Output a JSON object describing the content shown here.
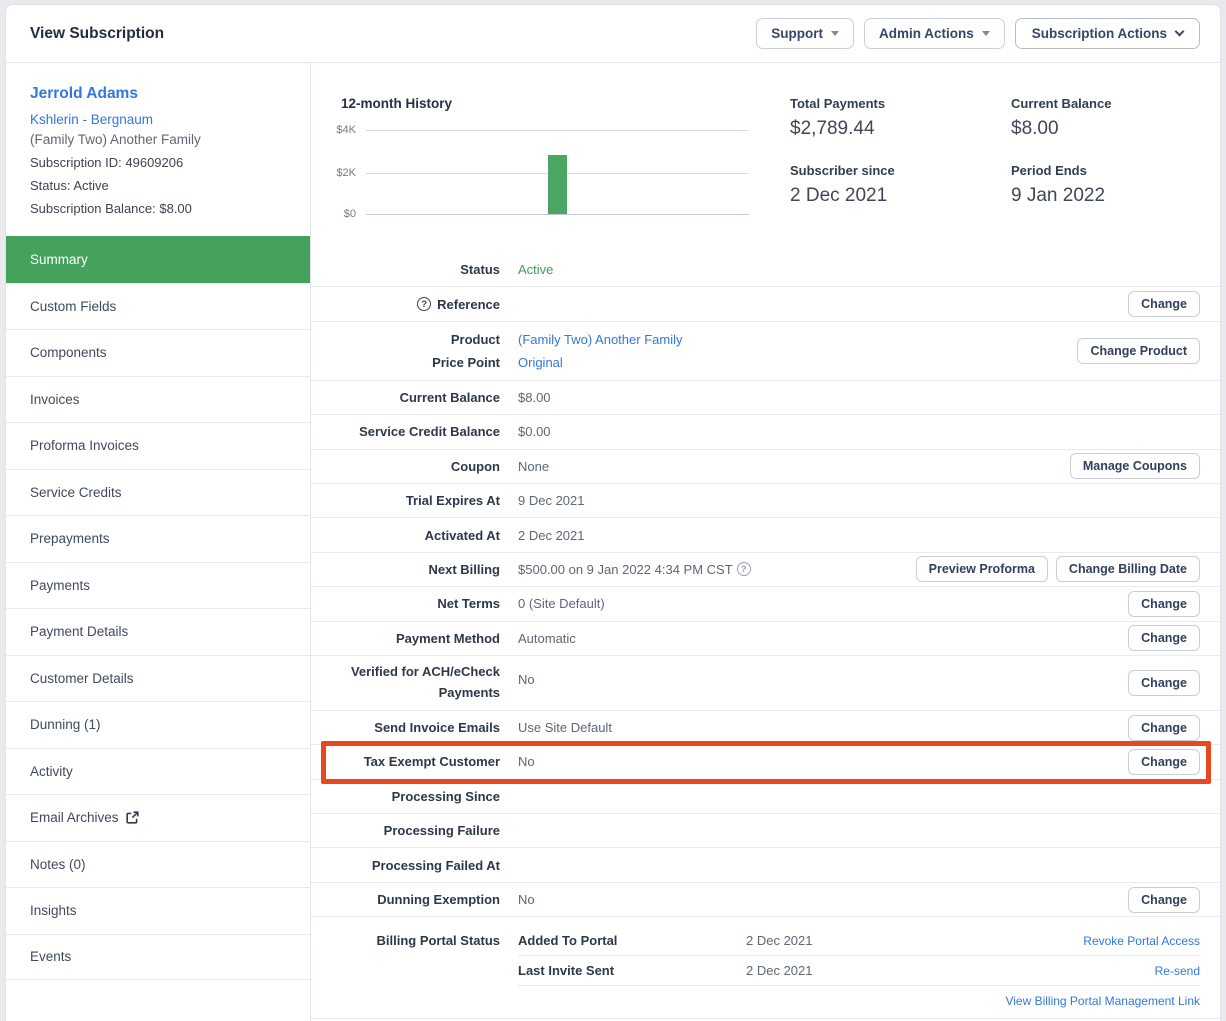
{
  "page": {
    "title": "View Subscription"
  },
  "header_actions": [
    {
      "label": "Support"
    },
    {
      "label": "Admin Actions"
    },
    {
      "label": "Subscription Actions"
    }
  ],
  "sidebar": {
    "customer_name": "Jerrold Adams",
    "seller_link": "Kshlerin - Bergnaum",
    "product_line": "(Family Two) Another Family",
    "meta": [
      "Subscription ID: 49609206",
      "Status: Active",
      "Subscription Balance: $8.00"
    ],
    "nav": [
      {
        "label": "Summary",
        "active": true
      },
      {
        "label": "Custom Fields"
      },
      {
        "label": "Components"
      },
      {
        "label": "Invoices"
      },
      {
        "label": "Proforma Invoices"
      },
      {
        "label": "Service Credits"
      },
      {
        "label": "Prepayments"
      },
      {
        "label": "Payments"
      },
      {
        "label": "Payment Details"
      },
      {
        "label": "Customer Details"
      },
      {
        "label": "Dunning (1)"
      },
      {
        "label": "Activity"
      },
      {
        "label": "Email Archives",
        "external": true
      },
      {
        "label": "Notes (0)"
      },
      {
        "label": "Insights"
      },
      {
        "label": "Events"
      }
    ]
  },
  "overview": {
    "chart_title": "12-month History",
    "stats": [
      {
        "label": "Total Payments",
        "value": "$2,789.44"
      },
      {
        "label": "Current Balance",
        "value": "$8.00"
      },
      {
        "label": "Subscriber since",
        "value": "2 Dec 2021"
      },
      {
        "label": "Period Ends",
        "value": "9 Jan 2022"
      }
    ]
  },
  "chart_data": {
    "type": "bar",
    "title": "12-month History",
    "x": [
      1,
      2,
      3,
      4,
      5,
      6,
      7,
      8,
      9,
      10,
      11,
      12
    ],
    "values": [
      0,
      0,
      0,
      0,
      0,
      0,
      2789.44,
      0,
      0,
      0,
      0,
      0
    ],
    "yticks": [
      "$4K",
      "$2K",
      "$0"
    ],
    "ylim": [
      0,
      4000
    ],
    "xlabel": "",
    "ylabel": "",
    "grid": true,
    "legend": false
  },
  "details": {
    "status": {
      "label": "Status",
      "value": "Active"
    },
    "reference": {
      "label": "Reference",
      "button": "Change"
    },
    "product": {
      "label": "Product",
      "value": "(Family Two) Another Family"
    },
    "price_point": {
      "label": "Price Point",
      "value": "Original"
    },
    "product_button": "Change Product",
    "current_balance": {
      "label": "Current Balance",
      "value": "$8.00"
    },
    "service_credit_balance": {
      "label": "Service Credit Balance",
      "value": "$0.00"
    },
    "coupon": {
      "label": "Coupon",
      "value": "None",
      "button": "Manage Coupons"
    },
    "trial_expires_at": {
      "label": "Trial Expires At",
      "value": "9 Dec 2021"
    },
    "activated_at": {
      "label": "Activated At",
      "value": "2 Dec 2021"
    },
    "next_billing": {
      "label": "Next Billing",
      "value": "$500.00 on 9 Jan 2022 4:34 PM CST",
      "buttons": [
        "Preview Proforma",
        "Change Billing Date"
      ]
    },
    "net_terms": {
      "label": "Net Terms",
      "value": "0 (Site Default)",
      "button": "Change"
    },
    "payment_method": {
      "label": "Payment Method",
      "value": "Automatic",
      "button": "Change"
    },
    "verified_ach": {
      "label": "Verified for ACH/eCheck Payments",
      "value": "No",
      "button": "Change"
    },
    "send_invoice_emails": {
      "label": "Send Invoice Emails",
      "value": "Use Site Default",
      "button": "Change"
    },
    "tax_exempt": {
      "label": "Tax Exempt Customer",
      "value": "No",
      "button": "Change"
    },
    "processing_since": {
      "label": "Processing Since"
    },
    "processing_failure": {
      "label": "Processing Failure"
    },
    "processing_failed_at": {
      "label": "Processing Failed At"
    },
    "dunning_exemption": {
      "label": "Dunning Exemption",
      "value": "No",
      "button": "Change"
    },
    "billing_portal": {
      "label": "Billing Portal Status",
      "rows": [
        {
          "name": "Added To Portal",
          "date": "2 Dec 2021",
          "link": "Revoke Portal Access"
        },
        {
          "name": "Last Invite Sent",
          "date": "2 Dec 2021",
          "link": "Re-send"
        }
      ],
      "manage_link": "View Billing Portal Management Link"
    }
  },
  "colors": {
    "accent_green": "#44a25c",
    "status_green": "#3ca05a",
    "bar_green": "#4aa662",
    "link_blue": "#3377dd",
    "highlight_red": "#e8481f"
  }
}
